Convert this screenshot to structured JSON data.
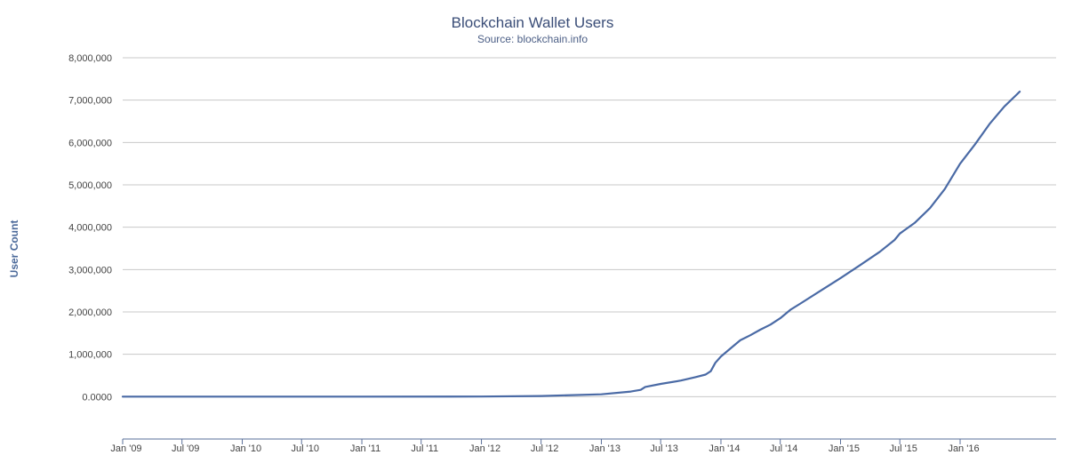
{
  "chart_data": {
    "type": "line",
    "title": "Blockchain Wallet Users",
    "subtitle": "Source: blockchain.info",
    "xlabel": "",
    "ylabel": "User Count",
    "x_tick_labels": [
      "Jan '09",
      "Jul '09",
      "Jan '10",
      "Jul '10",
      "Jan '11",
      "Jul '11",
      "Jan '12",
      "Jul '12",
      "Jan '13",
      "Jul '13",
      "Jan '14",
      "Jul '14",
      "Jan '15",
      "Jul '15",
      "Jan '16"
    ],
    "y_tick_labels": [
      "0.0000",
      "1,000,000",
      "2,000,000",
      "3,000,000",
      "4,000,000",
      "5,000,000",
      "6,000,000",
      "7,000,000",
      "8,000,000"
    ],
    "y_ticks": [
      0,
      1000000,
      2000000,
      3000000,
      4000000,
      5000000,
      6000000,
      7000000,
      8000000
    ],
    "ylim": [
      -1000000,
      8000000
    ],
    "xlim": [
      "2009-01-01",
      "2016-10-20"
    ],
    "grid": true,
    "legend": "none",
    "colors": {
      "line": "#4a6aa5",
      "grid": "#c8c8c8",
      "axis": "#5a6f99"
    },
    "series": [
      {
        "points": [
          [
            "2009-01-01",
            0
          ],
          [
            "2011-01-01",
            0
          ],
          [
            "2012-01-01",
            2000
          ],
          [
            "2012-07-01",
            15000
          ],
          [
            "2013-01-01",
            55000
          ],
          [
            "2013-04-01",
            120000
          ],
          [
            "2013-05-01",
            160000
          ],
          [
            "2013-05-15",
            230000
          ],
          [
            "2013-07-01",
            300000
          ],
          [
            "2013-09-01",
            380000
          ],
          [
            "2013-10-15",
            460000
          ],
          [
            "2013-11-15",
            520000
          ],
          [
            "2013-12-01",
            600000
          ],
          [
            "2013-12-15",
            800000
          ],
          [
            "2014-01-01",
            950000
          ],
          [
            "2014-02-01",
            1150000
          ],
          [
            "2014-03-01",
            1330000
          ],
          [
            "2014-04-01",
            1450000
          ],
          [
            "2014-05-01",
            1580000
          ],
          [
            "2014-06-01",
            1700000
          ],
          [
            "2014-07-01",
            1850000
          ],
          [
            "2014-08-01",
            2050000
          ],
          [
            "2014-09-01",
            2200000
          ],
          [
            "2014-11-01",
            2500000
          ],
          [
            "2015-01-01",
            2800000
          ],
          [
            "2015-03-01",
            3100000
          ],
          [
            "2015-05-01",
            3420000
          ],
          [
            "2015-06-15",
            3700000
          ],
          [
            "2015-07-01",
            3850000
          ],
          [
            "2015-08-15",
            4100000
          ],
          [
            "2015-10-01",
            4450000
          ],
          [
            "2015-11-15",
            4900000
          ],
          [
            "2016-01-01",
            5500000
          ],
          [
            "2016-02-15",
            5950000
          ],
          [
            "2016-04-01",
            6450000
          ],
          [
            "2016-05-15",
            6850000
          ],
          [
            "2016-07-01",
            7200000
          ]
        ]
      }
    ]
  }
}
